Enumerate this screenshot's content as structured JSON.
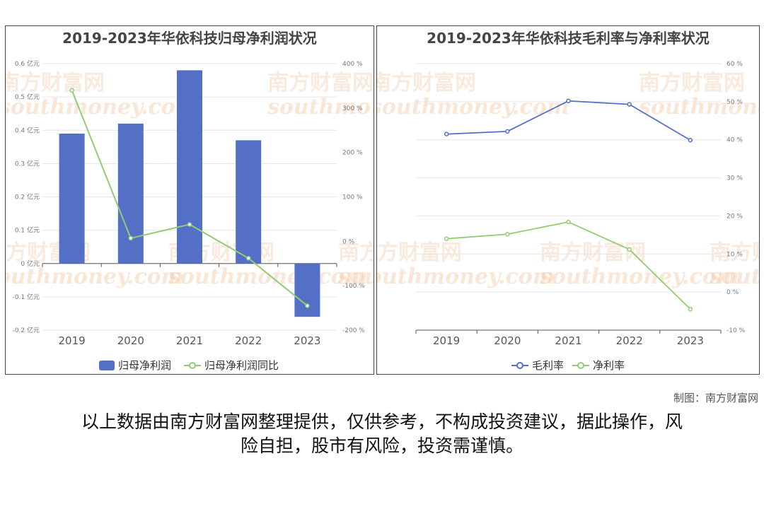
{
  "chart_data": [
    {
      "type": "bar",
      "title": "2019-2023年华依科技归母净利润状况",
      "categories": [
        "2019",
        "2020",
        "2021",
        "2022",
        "2023"
      ],
      "series": [
        {
          "name": "归母净利润",
          "type": "bar",
          "axis": "left",
          "values": [
            0.39,
            0.42,
            0.58,
            0.37,
            -0.16
          ],
          "color": "#5470c6"
        },
        {
          "name": "归母净利润同比",
          "type": "line",
          "axis": "right",
          "values": [
            340,
            7,
            38,
            -38,
            -145
          ],
          "color": "#91cc75"
        }
      ],
      "y_left": {
        "ylim": [
          -0.2,
          0.6
        ],
        "ticks": [
          "-0.2 亿元",
          "-0.1 亿元",
          "0 亿元",
          "0.1 亿元",
          "0.2 亿元",
          "0.3 亿元",
          "0.4 亿元",
          "0.5 亿元",
          "0.6 亿元"
        ]
      },
      "y_right": {
        "ylim": [
          -200,
          400
        ],
        "ticks": [
          "-200 %",
          "-100 %",
          "0 %",
          "100 %",
          "200 %",
          "300 %",
          "400 %"
        ]
      },
      "legend": "bottom",
      "grid": true
    },
    {
      "type": "line",
      "title": "2019-2023年华依科技毛利率与净利率状况",
      "categories": [
        "2019",
        "2020",
        "2021",
        "2022",
        "2023"
      ],
      "series": [
        {
          "name": "毛利率",
          "values": [
            41.5,
            42.2,
            50.2,
            49.3,
            39.9
          ],
          "color": "#5470c6"
        },
        {
          "name": "净利率",
          "values": [
            14.0,
            15.2,
            18.4,
            11.2,
            -4.5
          ],
          "color": "#91cc75"
        }
      ],
      "y_right": {
        "ylim": [
          -10,
          60
        ],
        "ticks": [
          "-10 %",
          "0 %",
          "10 %",
          "20 %",
          "30 %",
          "40 %",
          "50 %",
          "60 %"
        ]
      },
      "legend": "bottom",
      "grid": true
    }
  ],
  "watermark": {
    "cn": "南方财富网",
    "en": "southmoney.com"
  },
  "footer": {
    "credit": "制图：南方财富网",
    "disclaimer_line1": "以上数据由南方财富网整理提供，仅供参考，不构成投资建议，据此操作，风",
    "disclaimer_line2": "险自担，股市有风险，投资需谨慎。"
  }
}
